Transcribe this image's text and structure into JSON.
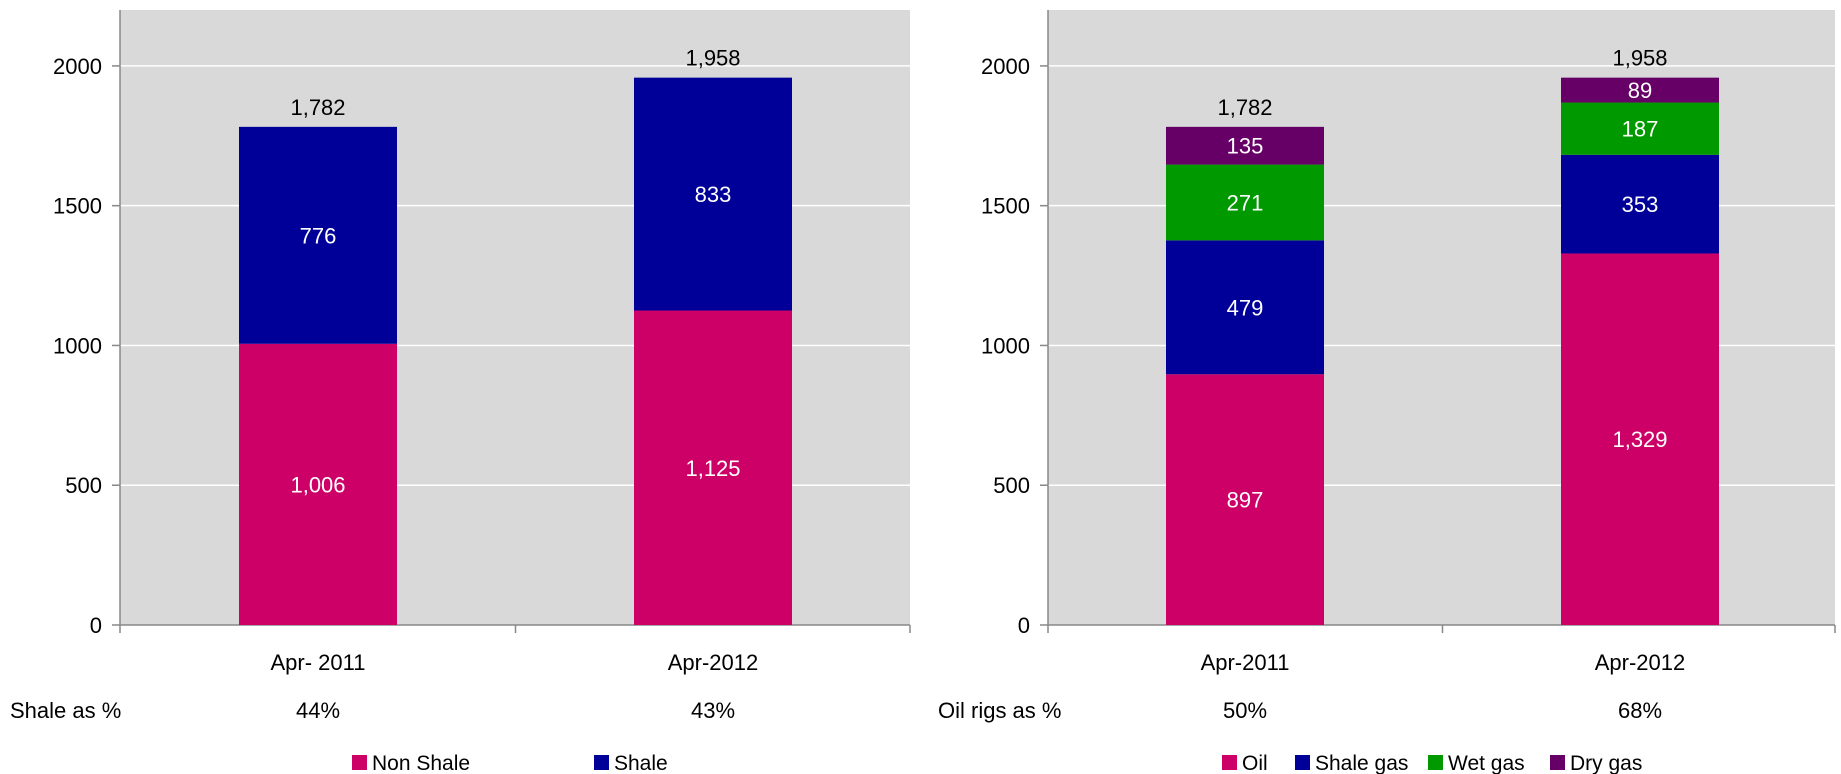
{
  "chart_data": [
    {
      "type": "bar",
      "stacked": true,
      "categories": [
        "Apr- 2011",
        "Apr-2012"
      ],
      "ylim": [
        0,
        2200
      ],
      "yticks": [
        0,
        500,
        1000,
        1500,
        2000
      ],
      "grid": true,
      "series": [
        {
          "name": "Non Shale",
          "color": "#cc0066",
          "values": [
            1006,
            1125
          ],
          "labels": [
            "1,006",
            "1,125"
          ]
        },
        {
          "name": "Shale",
          "color": "#000099",
          "values": [
            776,
            833
          ],
          "labels": [
            "776",
            "833"
          ]
        }
      ],
      "totals": [
        "1,782",
        "1,958"
      ],
      "extra_row": {
        "label": "Shale as %",
        "values": [
          "44%",
          "43%"
        ]
      },
      "legend_position": "bottom"
    },
    {
      "type": "bar",
      "stacked": true,
      "categories": [
        "Apr-2011",
        "Apr-2012"
      ],
      "ylim": [
        0,
        2200
      ],
      "yticks": [
        0,
        500,
        1000,
        1500,
        2000
      ],
      "grid": true,
      "series": [
        {
          "name": "Oil",
          "color": "#cc0066",
          "values": [
            897,
            1329
          ],
          "labels": [
            "897",
            "1,329"
          ]
        },
        {
          "name": "Shale gas",
          "color": "#000099",
          "values": [
            479,
            353
          ],
          "labels": [
            "479",
            "353"
          ]
        },
        {
          "name": "Wet gas",
          "color": "#009900",
          "values": [
            271,
            187
          ],
          "labels": [
            "271",
            "187"
          ]
        },
        {
          "name": "Dry gas",
          "color": "#660066",
          "values": [
            135,
            89
          ],
          "labels": [
            "135",
            "89"
          ]
        }
      ],
      "totals": [
        "1,782",
        "1,958"
      ],
      "extra_row": {
        "label": "Oil rigs as %",
        "values": [
          "50%",
          "68%"
        ]
      },
      "legend_position": "bottom"
    }
  ]
}
